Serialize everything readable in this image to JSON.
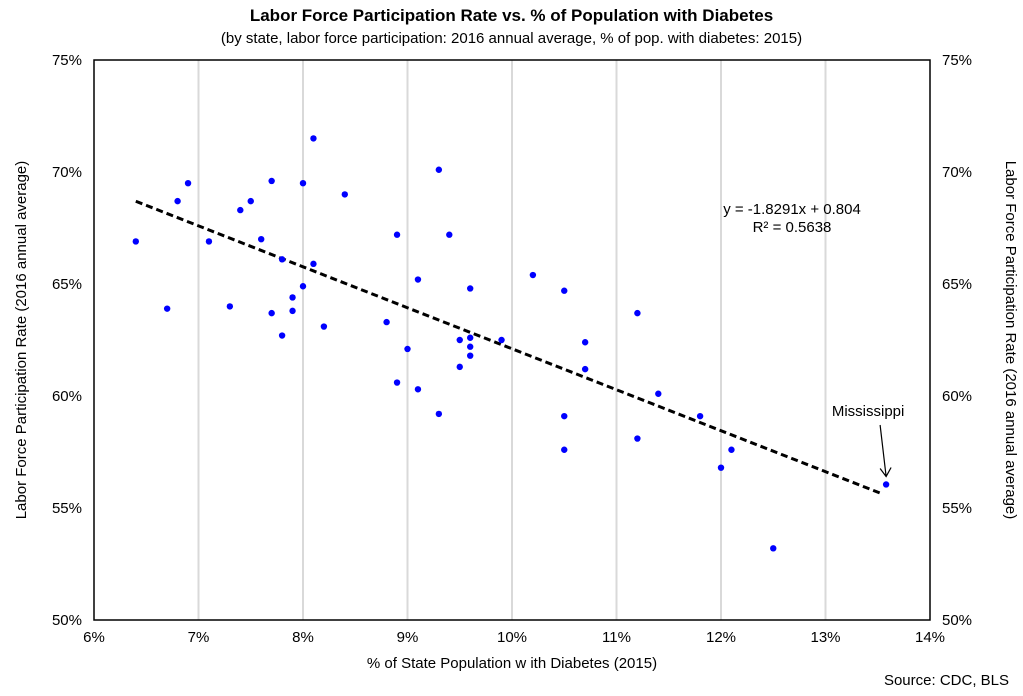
{
  "chart_data": {
    "type": "scatter",
    "title": "Labor Force Participation Rate vs. % of Population with Diabetes",
    "subtitle": "(by state, labor force participation: 2016 annual average, % of pop. with diabetes: 2015)",
    "xlabel": "% of State Population  w ith Diabetes (2015)",
    "ylabel_left": "Labor Force Participation Rate  (2016 annual average)",
    "ylabel_right": "Labor Force Participation Rate  (2016 annual average)",
    "source": "Source: CDC,  BLS",
    "xlim": [
      0.06,
      0.14
    ],
    "ylim": [
      0.5,
      0.75
    ],
    "x_ticks": [
      0.06,
      0.07,
      0.08,
      0.09,
      0.1,
      0.11,
      0.12,
      0.13,
      0.14
    ],
    "x_tick_labels": [
      "6%",
      "7%",
      "8%",
      "9%",
      "10%",
      "11%",
      "12%",
      "13%",
      "14%"
    ],
    "y_ticks": [
      0.5,
      0.55,
      0.6,
      0.65,
      0.7,
      0.75
    ],
    "y_tick_labels": [
      "50%",
      "55%",
      "60%",
      "65%",
      "70%",
      "75%"
    ],
    "grid": "vertical",
    "point_color": "#0000ff",
    "trendline": {
      "slope": -1.8291,
      "intercept": 0.804,
      "x_range": [
        0.064,
        0.1355
      ],
      "color": "#000000",
      "style": "dashed",
      "equation": "y = -1.8291x + 0.804",
      "r_squared": "R² = 0.5638"
    },
    "annotation": {
      "text": "Mississippi",
      "x": 0.1358,
      "y": 0.5605
    },
    "points": [
      [
        0.064,
        0.669
      ],
      [
        0.067,
        0.639
      ],
      [
        0.068,
        0.687
      ],
      [
        0.069,
        0.695
      ],
      [
        0.071,
        0.669
      ],
      [
        0.073,
        0.64
      ],
      [
        0.074,
        0.683
      ],
      [
        0.075,
        0.687
      ],
      [
        0.076,
        0.67
      ],
      [
        0.077,
        0.637
      ],
      [
        0.077,
        0.696
      ],
      [
        0.078,
        0.661
      ],
      [
        0.078,
        0.627
      ],
      [
        0.079,
        0.644
      ],
      [
        0.079,
        0.638
      ],
      [
        0.08,
        0.695
      ],
      [
        0.08,
        0.649
      ],
      [
        0.081,
        0.715
      ],
      [
        0.081,
        0.659
      ],
      [
        0.082,
        0.631
      ],
      [
        0.084,
        0.69
      ],
      [
        0.088,
        0.633
      ],
      [
        0.089,
        0.672
      ],
      [
        0.089,
        0.606
      ],
      [
        0.09,
        0.621
      ],
      [
        0.091,
        0.652
      ],
      [
        0.091,
        0.603
      ],
      [
        0.093,
        0.701
      ],
      [
        0.093,
        0.592
      ],
      [
        0.094,
        0.672
      ],
      [
        0.095,
        0.625
      ],
      [
        0.095,
        0.613
      ],
      [
        0.096,
        0.648
      ],
      [
        0.096,
        0.626
      ],
      [
        0.096,
        0.622
      ],
      [
        0.096,
        0.618
      ],
      [
        0.099,
        0.625
      ],
      [
        0.102,
        0.654
      ],
      [
        0.105,
        0.647
      ],
      [
        0.105,
        0.591
      ],
      [
        0.105,
        0.576
      ],
      [
        0.107,
        0.624
      ],
      [
        0.107,
        0.612
      ],
      [
        0.112,
        0.637
      ],
      [
        0.112,
        0.581
      ],
      [
        0.114,
        0.601
      ],
      [
        0.118,
        0.591
      ],
      [
        0.12,
        0.568
      ],
      [
        0.121,
        0.576
      ],
      [
        0.125,
        0.532
      ],
      [
        0.1358,
        0.5605
      ]
    ]
  }
}
